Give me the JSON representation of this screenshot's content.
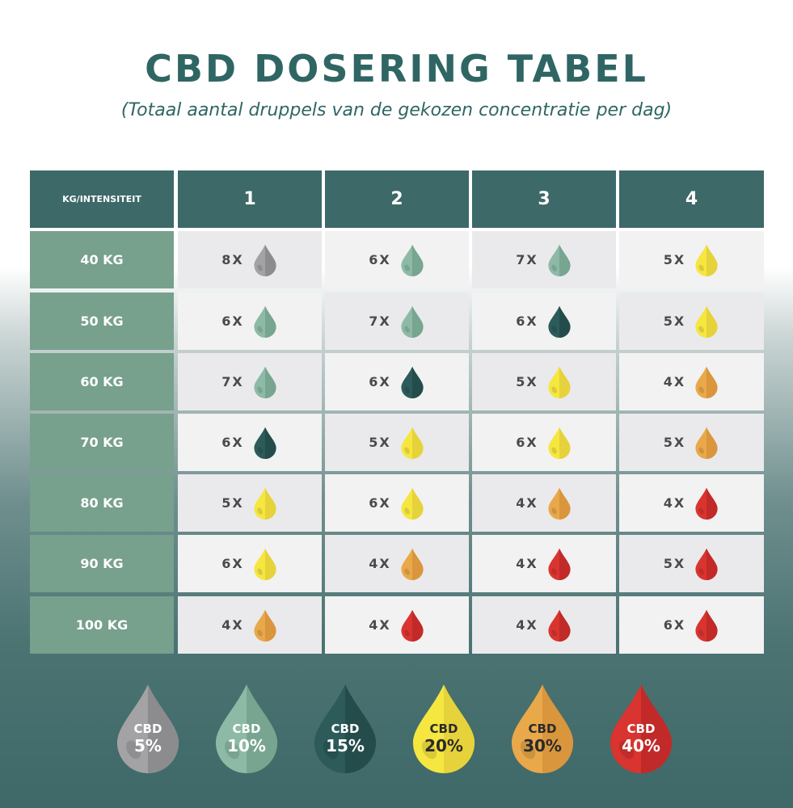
{
  "title": "CBD DOSERING TABEL",
  "subtitle": "(Totaal aantal druppels van de gekozen concentratie per dag)",
  "colors": {
    "5%": [
      "#a3a3a5",
      "#8c8c8e"
    ],
    "10%": [
      "#8dbaa6",
      "#77a590"
    ],
    "15%": [
      "#2c5b5a",
      "#234c4b"
    ],
    "20%": [
      "#f6e640",
      "#e6d23a"
    ],
    "30%": [
      "#e9a84a",
      "#d9963d"
    ],
    "40%": [
      "#d9342f",
      "#c12a28"
    ]
  },
  "chart_data": {
    "type": "table",
    "corner_header": "KG/INTENSITEIT",
    "columns": [
      "1",
      "2",
      "3",
      "4"
    ],
    "rows": [
      {
        "label": "40 KG",
        "cells": [
          {
            "count": "8X",
            "cbd": "5%"
          },
          {
            "count": "6X",
            "cbd": "10%"
          },
          {
            "count": "7X",
            "cbd": "10%"
          },
          {
            "count": "5X",
            "cbd": "20%"
          }
        ]
      },
      {
        "label": "50 KG",
        "cells": [
          {
            "count": "6X",
            "cbd": "10%"
          },
          {
            "count": "7X",
            "cbd": "10%"
          },
          {
            "count": "6X",
            "cbd": "15%"
          },
          {
            "count": "5X",
            "cbd": "20%"
          }
        ]
      },
      {
        "label": "60 KG",
        "cells": [
          {
            "count": "7X",
            "cbd": "10%"
          },
          {
            "count": "6X",
            "cbd": "15%"
          },
          {
            "count": "5X",
            "cbd": "20%"
          },
          {
            "count": "4X",
            "cbd": "30%"
          }
        ]
      },
      {
        "label": "70 KG",
        "cells": [
          {
            "count": "6X",
            "cbd": "15%"
          },
          {
            "count": "5X",
            "cbd": "20%"
          },
          {
            "count": "6X",
            "cbd": "20%"
          },
          {
            "count": "5X",
            "cbd": "30%"
          }
        ]
      },
      {
        "label": "80 KG",
        "cells": [
          {
            "count": "5X",
            "cbd": "20%"
          },
          {
            "count": "6X",
            "cbd": "20%"
          },
          {
            "count": "4X",
            "cbd": "30%"
          },
          {
            "count": "4X",
            "cbd": "40%"
          }
        ]
      },
      {
        "label": "90 KG",
        "cells": [
          {
            "count": "6X",
            "cbd": "20%"
          },
          {
            "count": "4X",
            "cbd": "30%"
          },
          {
            "count": "4X",
            "cbd": "40%"
          },
          {
            "count": "5X",
            "cbd": "40%"
          }
        ]
      },
      {
        "label": "100 KG",
        "cells": [
          {
            "count": "4X",
            "cbd": "30%"
          },
          {
            "count": "4X",
            "cbd": "40%"
          },
          {
            "count": "4X",
            "cbd": "40%"
          },
          {
            "count": "6X",
            "cbd": "40%"
          }
        ]
      }
    ]
  },
  "legend": [
    {
      "label": "CBD",
      "value": "5%",
      "text_color": "#ffffff"
    },
    {
      "label": "CBD",
      "value": "10%",
      "text_color": "#ffffff"
    },
    {
      "label": "CBD",
      "value": "15%",
      "text_color": "#ffffff"
    },
    {
      "label": "CBD",
      "value": "20%",
      "text_color": "#2a2a2a"
    },
    {
      "label": "CBD",
      "value": "30%",
      "text_color": "#2a2a2a"
    },
    {
      "label": "CBD",
      "value": "40%",
      "text_color": "#ffffff"
    }
  ]
}
